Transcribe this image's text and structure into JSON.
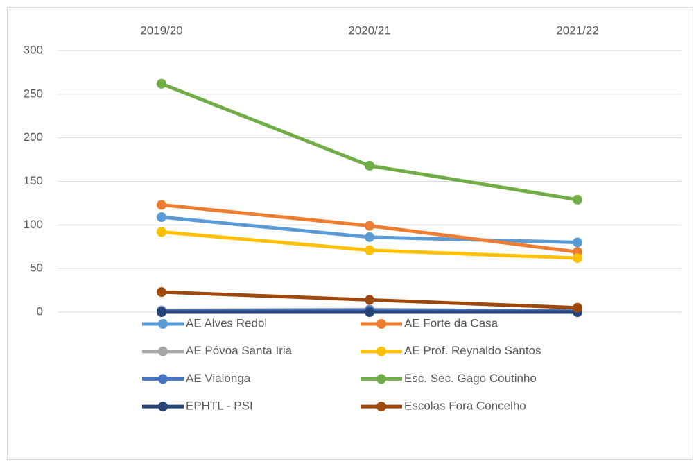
{
  "chart_data": {
    "type": "line",
    "categories": [
      "2019/20",
      "2020/21",
      "2021/22"
    ],
    "ylim": [
      0,
      300
    ],
    "yticks": [
      0,
      50,
      100,
      150,
      200,
      250,
      300
    ],
    "grid": true,
    "series": [
      {
        "name": "AE Alves Redol",
        "color": "#5b9bd5",
        "values": [
          109,
          86,
          80
        ]
      },
      {
        "name": "AE Forte da Casa",
        "color": "#ed7d31",
        "values": [
          123,
          99,
          69
        ]
      },
      {
        "name": "AE Póvoa Santa Iria",
        "color": "#a5a5a5",
        "values": [
          2,
          3,
          1
        ]
      },
      {
        "name": "AE Prof. Reynaldo Santos",
        "color": "#ffc000",
        "values": [
          92,
          71,
          62
        ]
      },
      {
        "name": "AE Vialonga",
        "color": "#4472c4",
        "values": [
          1,
          2,
          1
        ]
      },
      {
        "name": "Esc. Sec. Gago Coutinho",
        "color": "#70ad47",
        "values": [
          262,
          168,
          129
        ]
      },
      {
        "name": "EPHTL - PSI",
        "color": "#264478",
        "values": [
          0,
          0,
          0
        ]
      },
      {
        "name": "Escolas Fora Concelho",
        "color": "#9e480e",
        "values": [
          23,
          14,
          5
        ]
      }
    ]
  }
}
